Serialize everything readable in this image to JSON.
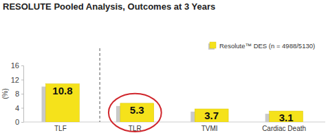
{
  "chart_data": {
    "type": "bar",
    "title": "RESOLUTE Pooled Analysis, Outcomes at 3 Years",
    "y_label": "(%)",
    "categories": [
      "TLF",
      "TLR",
      "TVMI",
      "Cardiac Death"
    ],
    "series": [
      {
        "name": "Resolute™ DES (n = 4988/5130)",
        "color": "#f5e21b",
        "values": [
          10.8,
          5.3,
          3.7,
          3.1
        ]
      }
    ],
    "ylim": [
      0,
      16
    ],
    "yticks": [
      0,
      4,
      8,
      12,
      16
    ],
    "grid": false,
    "legend": "upper right",
    "data_labels": true
  }
}
